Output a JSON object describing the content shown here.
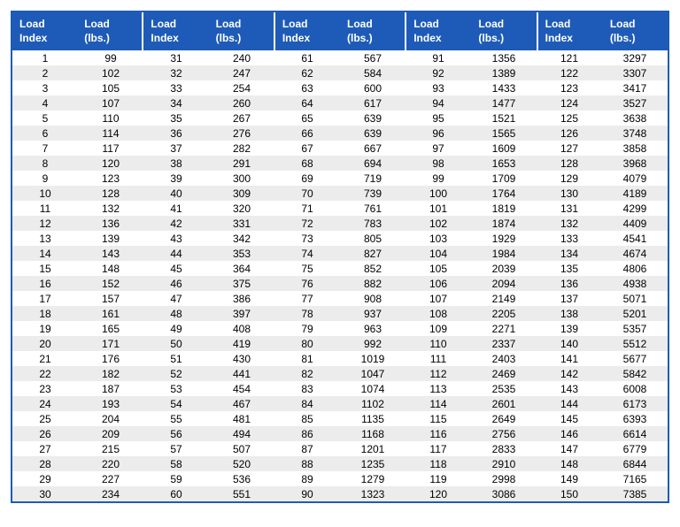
{
  "table": {
    "type": "table",
    "header_bg": "#1e5bb8",
    "header_fg": "#ffffff",
    "border_color": "#1e5bb8",
    "row_bg_even": "#ffffff",
    "row_bg_odd": "#ececec",
    "text_color": "#000000",
    "font_size_header": 12,
    "font_size_body": 12,
    "column_pairs": 5,
    "headers": {
      "index": "Load Index",
      "lbs": "Load (lbs.)"
    },
    "segments": [
      [
        {
          "index": 1,
          "lbs": 99
        },
        {
          "index": 2,
          "lbs": 102
        },
        {
          "index": 3,
          "lbs": 105
        },
        {
          "index": 4,
          "lbs": 107
        },
        {
          "index": 5,
          "lbs": 110
        },
        {
          "index": 6,
          "lbs": 114
        },
        {
          "index": 7,
          "lbs": 117
        },
        {
          "index": 8,
          "lbs": 120
        },
        {
          "index": 9,
          "lbs": 123
        },
        {
          "index": 10,
          "lbs": 128
        },
        {
          "index": 11,
          "lbs": 132
        },
        {
          "index": 12,
          "lbs": 136
        },
        {
          "index": 13,
          "lbs": 139
        },
        {
          "index": 14,
          "lbs": 143
        },
        {
          "index": 15,
          "lbs": 148
        },
        {
          "index": 16,
          "lbs": 152
        },
        {
          "index": 17,
          "lbs": 157
        },
        {
          "index": 18,
          "lbs": 161
        },
        {
          "index": 19,
          "lbs": 165
        },
        {
          "index": 20,
          "lbs": 171
        },
        {
          "index": 21,
          "lbs": 176
        },
        {
          "index": 22,
          "lbs": 182
        },
        {
          "index": 23,
          "lbs": 187
        },
        {
          "index": 24,
          "lbs": 193
        },
        {
          "index": 25,
          "lbs": 204
        },
        {
          "index": 26,
          "lbs": 209
        },
        {
          "index": 27,
          "lbs": 215
        },
        {
          "index": 28,
          "lbs": 220
        },
        {
          "index": 29,
          "lbs": 227
        },
        {
          "index": 30,
          "lbs": 234
        }
      ],
      [
        {
          "index": 31,
          "lbs": 240
        },
        {
          "index": 32,
          "lbs": 247
        },
        {
          "index": 33,
          "lbs": 254
        },
        {
          "index": 34,
          "lbs": 260
        },
        {
          "index": 35,
          "lbs": 267
        },
        {
          "index": 36,
          "lbs": 276
        },
        {
          "index": 37,
          "lbs": 282
        },
        {
          "index": 38,
          "lbs": 291
        },
        {
          "index": 39,
          "lbs": 300
        },
        {
          "index": 40,
          "lbs": 309
        },
        {
          "index": 41,
          "lbs": 320
        },
        {
          "index": 42,
          "lbs": 331
        },
        {
          "index": 43,
          "lbs": 342
        },
        {
          "index": 44,
          "lbs": 353
        },
        {
          "index": 45,
          "lbs": 364
        },
        {
          "index": 46,
          "lbs": 375
        },
        {
          "index": 47,
          "lbs": 386
        },
        {
          "index": 48,
          "lbs": 397
        },
        {
          "index": 49,
          "lbs": 408
        },
        {
          "index": 50,
          "lbs": 419
        },
        {
          "index": 51,
          "lbs": 430
        },
        {
          "index": 52,
          "lbs": 441
        },
        {
          "index": 53,
          "lbs": 454
        },
        {
          "index": 54,
          "lbs": 467
        },
        {
          "index": 55,
          "lbs": 481
        },
        {
          "index": 56,
          "lbs": 494
        },
        {
          "index": 57,
          "lbs": 507
        },
        {
          "index": 58,
          "lbs": 520
        },
        {
          "index": 59,
          "lbs": 536
        },
        {
          "index": 60,
          "lbs": 551
        }
      ],
      [
        {
          "index": 61,
          "lbs": 567
        },
        {
          "index": 62,
          "lbs": 584
        },
        {
          "index": 63,
          "lbs": 600
        },
        {
          "index": 64,
          "lbs": 617
        },
        {
          "index": 65,
          "lbs": 639
        },
        {
          "index": 66,
          "lbs": 639
        },
        {
          "index": 67,
          "lbs": 667
        },
        {
          "index": 68,
          "lbs": 694
        },
        {
          "index": 69,
          "lbs": 719
        },
        {
          "index": 70,
          "lbs": 739
        },
        {
          "index": 71,
          "lbs": 761
        },
        {
          "index": 72,
          "lbs": 783
        },
        {
          "index": 73,
          "lbs": 805
        },
        {
          "index": 74,
          "lbs": 827
        },
        {
          "index": 75,
          "lbs": 852
        },
        {
          "index": 76,
          "lbs": 882
        },
        {
          "index": 77,
          "lbs": 908
        },
        {
          "index": 78,
          "lbs": 937
        },
        {
          "index": 79,
          "lbs": 963
        },
        {
          "index": 80,
          "lbs": 992
        },
        {
          "index": 81,
          "lbs": 1019
        },
        {
          "index": 82,
          "lbs": 1047
        },
        {
          "index": 83,
          "lbs": 1074
        },
        {
          "index": 84,
          "lbs": 1102
        },
        {
          "index": 85,
          "lbs": 1135
        },
        {
          "index": 86,
          "lbs": 1168
        },
        {
          "index": 87,
          "lbs": 1201
        },
        {
          "index": 88,
          "lbs": 1235
        },
        {
          "index": 89,
          "lbs": 1279
        },
        {
          "index": 90,
          "lbs": 1323
        }
      ],
      [
        {
          "index": 91,
          "lbs": 1356
        },
        {
          "index": 92,
          "lbs": 1389
        },
        {
          "index": 93,
          "lbs": 1433
        },
        {
          "index": 94,
          "lbs": 1477
        },
        {
          "index": 95,
          "lbs": 1521
        },
        {
          "index": 96,
          "lbs": 1565
        },
        {
          "index": 97,
          "lbs": 1609
        },
        {
          "index": 98,
          "lbs": 1653
        },
        {
          "index": 99,
          "lbs": 1709
        },
        {
          "index": 100,
          "lbs": 1764
        },
        {
          "index": 101,
          "lbs": 1819
        },
        {
          "index": 102,
          "lbs": 1874
        },
        {
          "index": 103,
          "lbs": 1929
        },
        {
          "index": 104,
          "lbs": 1984
        },
        {
          "index": 105,
          "lbs": 2039
        },
        {
          "index": 106,
          "lbs": 2094
        },
        {
          "index": 107,
          "lbs": 2149
        },
        {
          "index": 108,
          "lbs": 2205
        },
        {
          "index": 109,
          "lbs": 2271
        },
        {
          "index": 110,
          "lbs": 2337
        },
        {
          "index": 111,
          "lbs": 2403
        },
        {
          "index": 112,
          "lbs": 2469
        },
        {
          "index": 113,
          "lbs": 2535
        },
        {
          "index": 114,
          "lbs": 2601
        },
        {
          "index": 115,
          "lbs": 2649
        },
        {
          "index": 116,
          "lbs": 2756
        },
        {
          "index": 117,
          "lbs": 2833
        },
        {
          "index": 118,
          "lbs": 2910
        },
        {
          "index": 119,
          "lbs": 2998
        },
        {
          "index": 120,
          "lbs": 3086
        }
      ],
      [
        {
          "index": 121,
          "lbs": 3297
        },
        {
          "index": 122,
          "lbs": 3307
        },
        {
          "index": 123,
          "lbs": 3417
        },
        {
          "index": 124,
          "lbs": 3527
        },
        {
          "index": 125,
          "lbs": 3638
        },
        {
          "index": 126,
          "lbs": 3748
        },
        {
          "index": 127,
          "lbs": 3858
        },
        {
          "index": 128,
          "lbs": 3968
        },
        {
          "index": 129,
          "lbs": 4079
        },
        {
          "index": 130,
          "lbs": 4189
        },
        {
          "index": 131,
          "lbs": 4299
        },
        {
          "index": 132,
          "lbs": 4409
        },
        {
          "index": 133,
          "lbs": 4541
        },
        {
          "index": 134,
          "lbs": 4674
        },
        {
          "index": 135,
          "lbs": 4806
        },
        {
          "index": 136,
          "lbs": 4938
        },
        {
          "index": 137,
          "lbs": 5071
        },
        {
          "index": 138,
          "lbs": 5201
        },
        {
          "index": 139,
          "lbs": 5357
        },
        {
          "index": 140,
          "lbs": 5512
        },
        {
          "index": 141,
          "lbs": 5677
        },
        {
          "index": 142,
          "lbs": 5842
        },
        {
          "index": 143,
          "lbs": 6008
        },
        {
          "index": 144,
          "lbs": 6173
        },
        {
          "index": 145,
          "lbs": 6393
        },
        {
          "index": 146,
          "lbs": 6614
        },
        {
          "index": 147,
          "lbs": 6779
        },
        {
          "index": 148,
          "lbs": 6844
        },
        {
          "index": 149,
          "lbs": 7165
        },
        {
          "index": 150,
          "lbs": 7385
        }
      ]
    ]
  }
}
